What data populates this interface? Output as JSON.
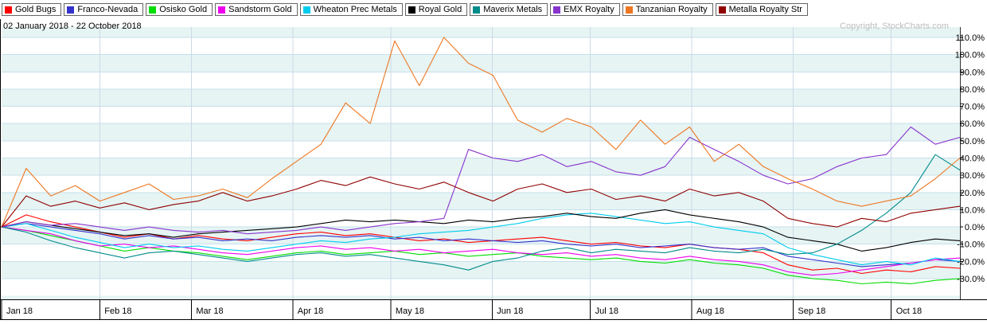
{
  "header": {
    "date_range": "02 January 2018 - 22 October 2018",
    "copyright": "Copyright, StockCharts.com"
  },
  "style": {
    "band_color": "#e6f4f4",
    "hgrid_color": "#c6e0ea",
    "vgrid_color": "#ccd9e6",
    "axis_color": "#000000",
    "frame_right_color": "#333333"
  },
  "chart_data": {
    "type": "line",
    "description": "Percent performance comparison of gold royalty and streaming stocks, 02 Jan 2018 - 22 Oct 2018",
    "sampling": "40 evenly spaced points spanning 02 Jan 2018 to 22 Oct 2018",
    "legend_position": "top",
    "grid": true,
    "x_axis": {
      "tick_labels": [
        "Jan 18",
        "Feb 18",
        "Mar 18",
        "Apr 18",
        "May 18",
        "Jun 18",
        "Jul 18",
        "Aug 18",
        "Sep 18",
        "Oct 18"
      ],
      "month_fractions": [
        0,
        0.1024,
        0.198,
        0.3038,
        0.4061,
        0.5119,
        0.6143,
        0.7201,
        0.8259,
        0.9283
      ]
    },
    "y_axis": {
      "unit": "%",
      "tick_labels": [
        "110.0%",
        "100.0%",
        "90.0%",
        "80.0%",
        "70.0%",
        "60.0%",
        "50.0%",
        "40.0%",
        "30.0%",
        "20.0%",
        "10.0%",
        "0.0%",
        "-10.0%",
        "-20.0%",
        "-30.0%"
      ],
      "tick_values": [
        110,
        100,
        90,
        80,
        70,
        60,
        50,
        40,
        30,
        20,
        10,
        0,
        -10,
        -20,
        -30
      ],
      "min": -42,
      "max": 116
    },
    "series": [
      {
        "name": "Gold Bugs",
        "color": "#FF0000",
        "values": [
          0,
          7,
          3,
          0,
          -3,
          -6,
          -4,
          -7,
          -5,
          -7,
          -8,
          -6,
          -4,
          -3,
          -5,
          -4,
          -6,
          -8,
          -7,
          -9,
          -8,
          -7,
          -6,
          -8,
          -10,
          -9,
          -11,
          -12,
          -10,
          -12,
          -13,
          -15,
          -22,
          -25,
          -24,
          -27,
          -25,
          -26,
          -23,
          -24
        ]
      },
      {
        "name": "Franco-Nevada",
        "color": "#3333CC",
        "values": [
          0,
          2,
          0,
          -2,
          -4,
          -7,
          -5,
          -7,
          -6,
          -8,
          -7,
          -8,
          -6,
          -5,
          -6,
          -5,
          -7,
          -6,
          -8,
          -7,
          -8,
          -9,
          -8,
          -10,
          -11,
          -10,
          -12,
          -11,
          -10,
          -12,
          -13,
          -12,
          -17,
          -19,
          -21,
          -23,
          -22,
          -21,
          -19,
          -20
        ]
      },
      {
        "name": "Osisko Gold",
        "color": "#00DD00",
        "values": [
          0,
          -2,
          -5,
          -8,
          -11,
          -14,
          -12,
          -14,
          -15,
          -17,
          -19,
          -17,
          -15,
          -14,
          -16,
          -15,
          -14,
          -16,
          -15,
          -17,
          -16,
          -15,
          -17,
          -18,
          -19,
          -18,
          -20,
          -21,
          -19,
          -21,
          -22,
          -24,
          -28,
          -30,
          -31,
          -33,
          -32,
          -33,
          -31,
          -30
        ]
      },
      {
        "name": "Sandstorm Gold",
        "color": "#EE00EE",
        "values": [
          0,
          -2,
          -4,
          -8,
          -11,
          -10,
          -12,
          -11,
          -13,
          -15,
          -16,
          -14,
          -12,
          -11,
          -13,
          -12,
          -14,
          -13,
          -15,
          -14,
          -13,
          -15,
          -16,
          -15,
          -17,
          -16,
          -18,
          -19,
          -17,
          -19,
          -20,
          -22,
          -26,
          -28,
          -27,
          -25,
          -23,
          -21,
          -19,
          -18
        ]
      },
      {
        "name": "Wheaton Prec Metals",
        "color": "#00CCEE",
        "values": [
          0,
          2,
          -2,
          -6,
          -9,
          -12,
          -10,
          -12,
          -11,
          -13,
          -14,
          -12,
          -10,
          -8,
          -9,
          -7,
          -6,
          -4,
          -3,
          -2,
          0,
          2,
          5,
          7,
          8,
          6,
          4,
          2,
          3,
          0,
          -2,
          -4,
          -12,
          -16,
          -19,
          -22,
          -20,
          -22,
          -18,
          -20
        ]
      },
      {
        "name": "Royal Gold",
        "color": "#000000",
        "values": [
          0,
          3,
          1,
          -1,
          -3,
          -5,
          -4,
          -6,
          -4,
          -3,
          -2,
          -1,
          0,
          2,
          4,
          3,
          4,
          3,
          2,
          4,
          3,
          5,
          6,
          8,
          6,
          5,
          8,
          10,
          7,
          5,
          3,
          0,
          -6,
          -8,
          -10,
          -14,
          -12,
          -9,
          -7,
          -8
        ]
      },
      {
        "name": "Maverix Metals",
        "color": "#008B8B",
        "values": [
          0,
          -3,
          -8,
          -12,
          -15,
          -18,
          -15,
          -14,
          -16,
          -18,
          -20,
          -18,
          -16,
          -15,
          -17,
          -16,
          -18,
          -20,
          -22,
          -25,
          -20,
          -18,
          -14,
          -12,
          -15,
          -13,
          -14,
          -15,
          -12,
          -14,
          -15,
          -13,
          -16,
          -15,
          -10,
          -2,
          8,
          20,
          42,
          33
        ]
      },
      {
        "name": "EMX Royalty",
        "color": "#8833CC",
        "values": [
          0,
          3,
          1,
          2,
          0,
          -2,
          0,
          -2,
          -3,
          -2,
          -4,
          -3,
          -2,
          0,
          -2,
          0,
          2,
          3,
          5,
          45,
          40,
          38,
          42,
          35,
          38,
          32,
          30,
          35,
          52,
          45,
          38,
          30,
          25,
          28,
          35,
          40,
          42,
          58,
          48,
          52
        ]
      },
      {
        "name": "Tanzanian Royalty",
        "color": "#EE7722",
        "values": [
          0,
          34,
          18,
          24,
          15,
          20,
          25,
          16,
          18,
          22,
          17,
          28,
          38,
          48,
          72,
          60,
          108,
          82,
          110,
          95,
          88,
          62,
          55,
          63,
          58,
          45,
          62,
          48,
          58,
          38,
          48,
          35,
          28,
          22,
          15,
          12,
          15,
          18,
          28,
          40
        ]
      },
      {
        "name": "Metalla Royalty Str",
        "color": "#900000",
        "values": [
          0,
          18,
          12,
          15,
          11,
          14,
          10,
          13,
          15,
          20,
          15,
          18,
          22,
          27,
          24,
          29,
          25,
          22,
          26,
          20,
          15,
          22,
          25,
          20,
          22,
          16,
          18,
          15,
          22,
          18,
          20,
          15,
          5,
          2,
          0,
          5,
          3,
          8,
          10,
          12
        ]
      }
    ]
  }
}
